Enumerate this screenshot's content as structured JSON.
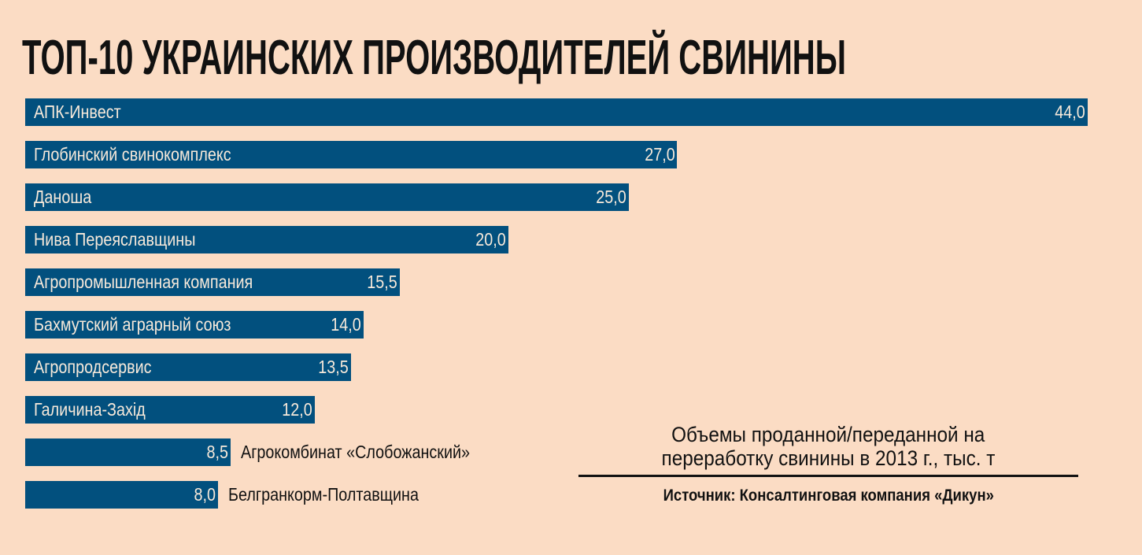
{
  "chart_data": {
    "type": "bar",
    "orientation": "horizontal",
    "title": "ТОП-10 УКРАИНСКИХ ПРОИЗВОДИТЕЛЕЙ СВИНИНЫ",
    "categories": [
      "АПК-Инвест",
      "Глобинский свинокомплекс",
      "Даноша",
      "Нива Переяславщины",
      "Агропромышленная компания",
      "Бахмутский аграрный союз",
      "Агропродсервис",
      "Галичина-Захід",
      "Агрокомбинат «Слобожанский»",
      "Белгранкорм-Полтавщина"
    ],
    "values": [
      44.0,
      27.0,
      25.0,
      20.0,
      15.5,
      14.0,
      13.5,
      12.0,
      8.5,
      8.0
    ],
    "value_labels": [
      "44,0",
      "27,0",
      "25,0",
      "20,0",
      "15,5",
      "14,0",
      "13,5",
      "12,0",
      "8,5",
      "8,0"
    ],
    "xlim": [
      0,
      44
    ],
    "xlabel": "",
    "ylabel": "",
    "grid": false,
    "legend_note": [
      "Объемы проданной/переданной на",
      "переработку свинины в 2013 г., тыс. т"
    ],
    "source": "Источник: Консалтинговая компания «Дикун»",
    "colors": {
      "bar": "#02507E",
      "background": "#FBDCC4",
      "bar_text": "#F7E9DA"
    }
  }
}
